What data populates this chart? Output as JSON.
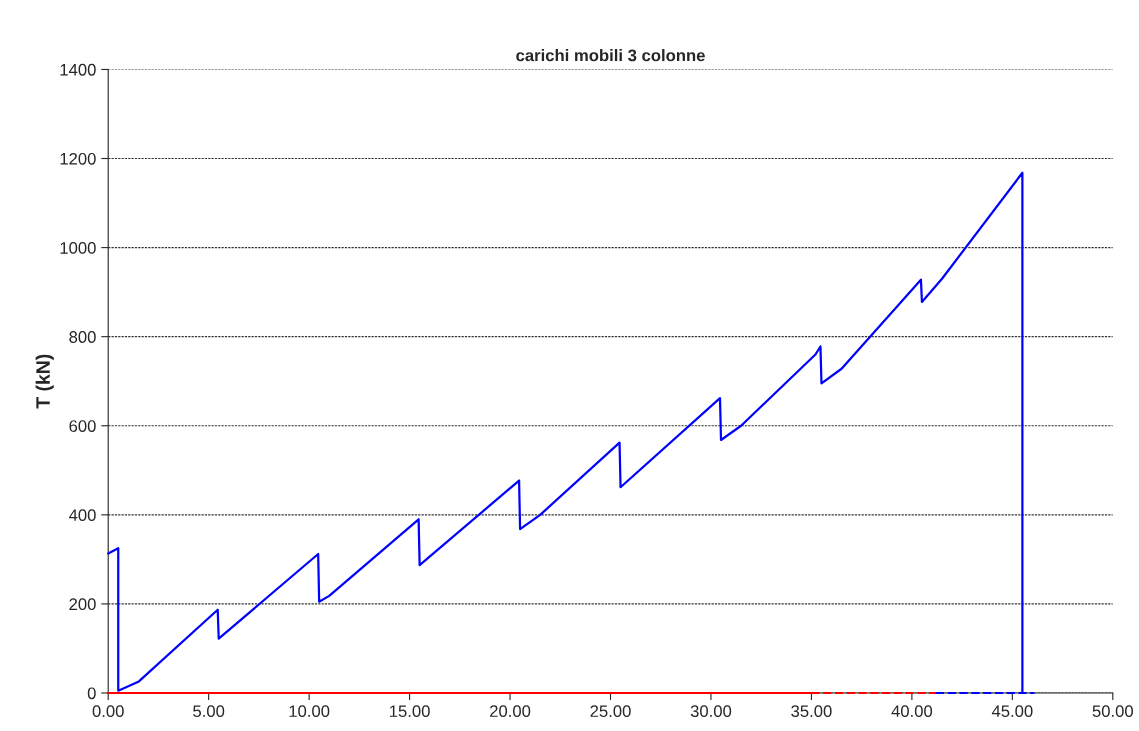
{
  "chart_data": {
    "type": "line",
    "title": "carichi mobili 3 colonne",
    "ylabel": "T (kN)",
    "xlim": [
      0,
      50
    ],
    "ylim": [
      0,
      1400
    ],
    "xticks": [
      {
        "value": 0,
        "label": "0.00"
      },
      {
        "value": 5,
        "label": "5.00"
      },
      {
        "value": 10,
        "label": "10.00"
      },
      {
        "value": 15,
        "label": "15.00"
      },
      {
        "value": 20,
        "label": "20.00"
      },
      {
        "value": 25,
        "label": "25.00"
      },
      {
        "value": 30,
        "label": "30.00"
      },
      {
        "value": 35,
        "label": "35.00"
      },
      {
        "value": 40,
        "label": "40.00"
      },
      {
        "value": 45,
        "label": "45.00"
      },
      {
        "value": 50,
        "label": "50.00"
      }
    ],
    "yticks": [
      0,
      200,
      400,
      600,
      800,
      1000,
      1200,
      1400
    ],
    "grid": "y",
    "legend": false,
    "marker": "none",
    "series": [
      {
        "color": "#0000ff",
        "line_style": "solid",
        "x": [
          0,
          0.5,
          0.5,
          1.5,
          5.45,
          5.5,
          10.45,
          10.5,
          11,
          15.45,
          15.5,
          20.45,
          20.5,
          21.5,
          25.45,
          25.5,
          30.45,
          30.5,
          31.5,
          35.2,
          35.45,
          35.5,
          36.5,
          40.45,
          40.5,
          41.5,
          45.5,
          45.5
        ],
        "values": [
          313,
          325,
          5,
          25,
          187,
          122,
          312,
          205,
          218,
          390,
          287,
          477,
          368,
          400,
          562,
          462,
          662,
          568,
          600,
          760,
          778,
          695,
          728,
          928,
          878,
          930,
          1168,
          0
        ]
      },
      {
        "color": "#ff0000",
        "line_style": "solid",
        "x": [
          0,
          35
        ],
        "values": [
          0,
          0
        ]
      },
      {
        "color": "#ff0000",
        "line_style": "dashed",
        "x": [
          35,
          41.2
        ],
        "values": [
          0,
          0
        ]
      },
      {
        "color": "#0000ff",
        "line_style": "dashed",
        "x": [
          41.2,
          46.1
        ],
        "values": [
          0,
          0
        ]
      }
    ]
  }
}
